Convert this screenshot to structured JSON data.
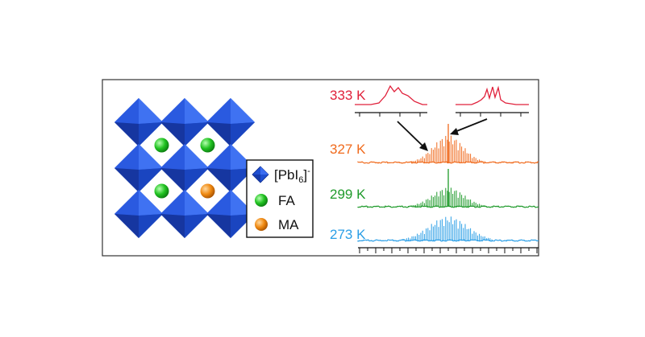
{
  "legend": {
    "items": [
      {
        "symbol": "octahedron",
        "label": "[PbI",
        "subscript": "6",
        "superscript": "]",
        "charge": "-",
        "color": "#1f4fd1"
      },
      {
        "symbol": "sphere",
        "label": "FA",
        "color": "#22c322"
      },
      {
        "symbol": "sphere",
        "label": "MA",
        "color": "#f08a12"
      }
    ]
  },
  "spectra": [
    {
      "label": "333 K",
      "color": "#e0203a"
    },
    {
      "label": "327 K",
      "color": "#f06a1c"
    },
    {
      "label": "299 K",
      "color": "#1e9a2a"
    },
    {
      "label": "273 K",
      "color": "#2a9ee6"
    }
  ],
  "lattice": {
    "rows": 3,
    "cols": 3,
    "cations": [
      "FA",
      "FA",
      "FA",
      "MA"
    ],
    "colors": {
      "octahedron": "#1f4fd1",
      "FA": "#22c322",
      "MA": "#f08a12"
    }
  }
}
